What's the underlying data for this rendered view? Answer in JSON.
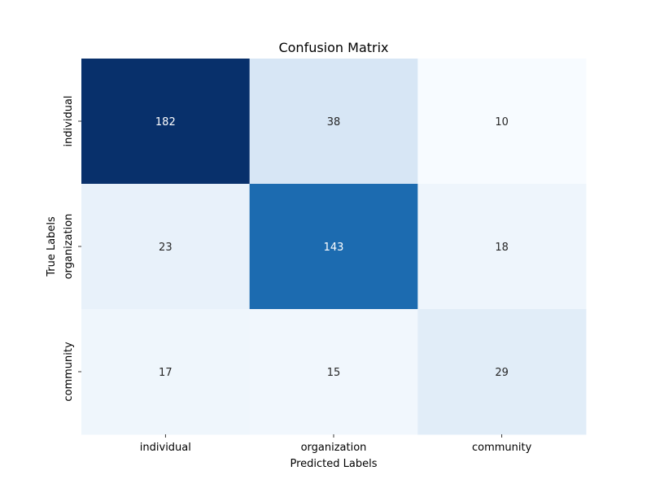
{
  "chart_data": {
    "type": "heatmap",
    "title": "Confusion Matrix",
    "xlabel": "Predicted Labels",
    "ylabel": "True Labels",
    "x_categories": [
      "individual",
      "organization",
      "community"
    ],
    "y_categories": [
      "individual",
      "organization",
      "community"
    ],
    "values": [
      [
        182,
        38,
        10
      ],
      [
        23,
        143,
        18
      ],
      [
        17,
        15,
        29
      ]
    ],
    "colormap": "Blues",
    "colorbar": false,
    "annotations": true
  }
}
